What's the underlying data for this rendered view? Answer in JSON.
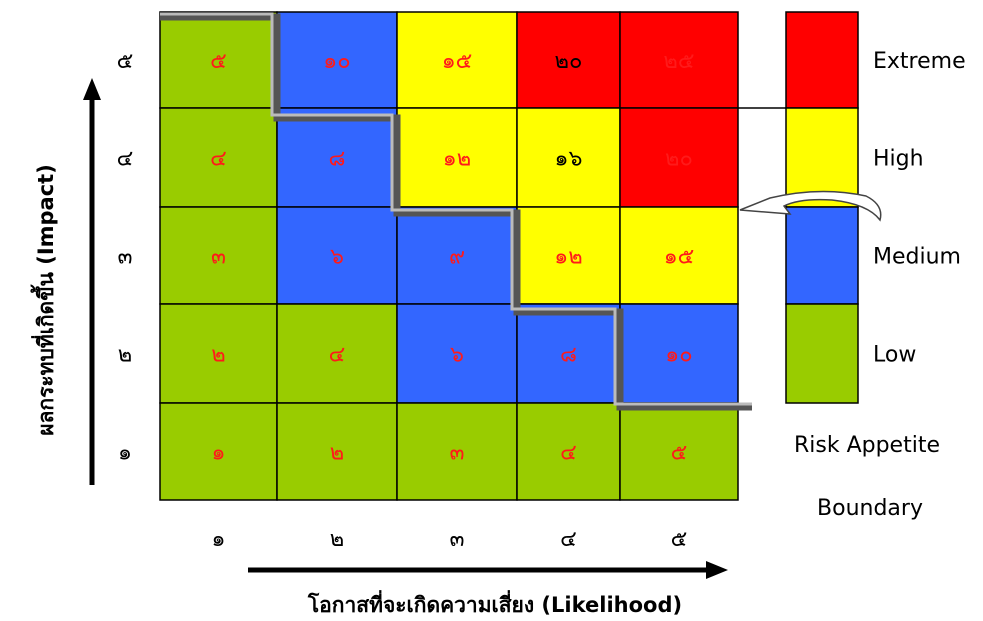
{
  "y_axis_label": "ผลกระทบที่เกิดขึ้น (Impact)",
  "x_axis_label": "โอกาสที่จะเกิดความเสี่ยง (Likelihood)",
  "row_labels": [
    "๕",
    "๔",
    "๓",
    "๒",
    "๑"
  ],
  "col_labels": [
    "๑",
    "๒",
    "๓",
    "๔",
    "๕"
  ],
  "cells": [
    [
      "๕",
      "๑๐",
      "๑๕",
      "๒๐",
      "๒๕"
    ],
    [
      "๔",
      "๘",
      "๑๒",
      "๑๖",
      "๒๐"
    ],
    [
      "๓",
      "๖",
      "๙",
      "๑๒",
      "๑๕"
    ],
    [
      "๒",
      "๔",
      "๖",
      "๘",
      "๑๐"
    ],
    [
      "๑",
      "๒",
      "๓",
      "๔",
      "๕"
    ]
  ],
  "cell_levels": [
    [
      "low",
      "medium",
      "high",
      "extreme",
      "extreme"
    ],
    [
      "low",
      "medium",
      "high",
      "high",
      "extreme"
    ],
    [
      "low",
      "medium",
      "medium",
      "high",
      "high"
    ],
    [
      "low",
      "low",
      "medium",
      "medium",
      "medium"
    ],
    [
      "low",
      "low",
      "low",
      "low",
      "low"
    ]
  ],
  "cell_text_colors": [
    [
      "red",
      "red",
      "red",
      "black",
      "red"
    ],
    [
      "red",
      "red",
      "red",
      "black",
      "red"
    ],
    [
      "red",
      "red",
      "red",
      "red",
      "red"
    ],
    [
      "red",
      "red",
      "red",
      "red",
      "red"
    ],
    [
      "red",
      "red",
      "red",
      "red",
      "red"
    ]
  ],
  "legend": [
    {
      "level": "extreme",
      "label": "Extreme"
    },
    {
      "level": "high",
      "label": "High"
    },
    {
      "level": "medium",
      "label": "Medium"
    },
    {
      "level": "low",
      "label": "Low"
    }
  ],
  "boundary_label": {
    "line1": "Risk Appetite",
    "line2": "Boundary"
  },
  "colors": {
    "low": "#99cc00",
    "medium": "#3366ff",
    "high": "#ffff00",
    "extreme": "#ff0000",
    "red_text": "#ff1a1a",
    "black_text": "#000000",
    "boundary_dark": "#555555",
    "boundary_light": "#bbbbbb"
  }
}
